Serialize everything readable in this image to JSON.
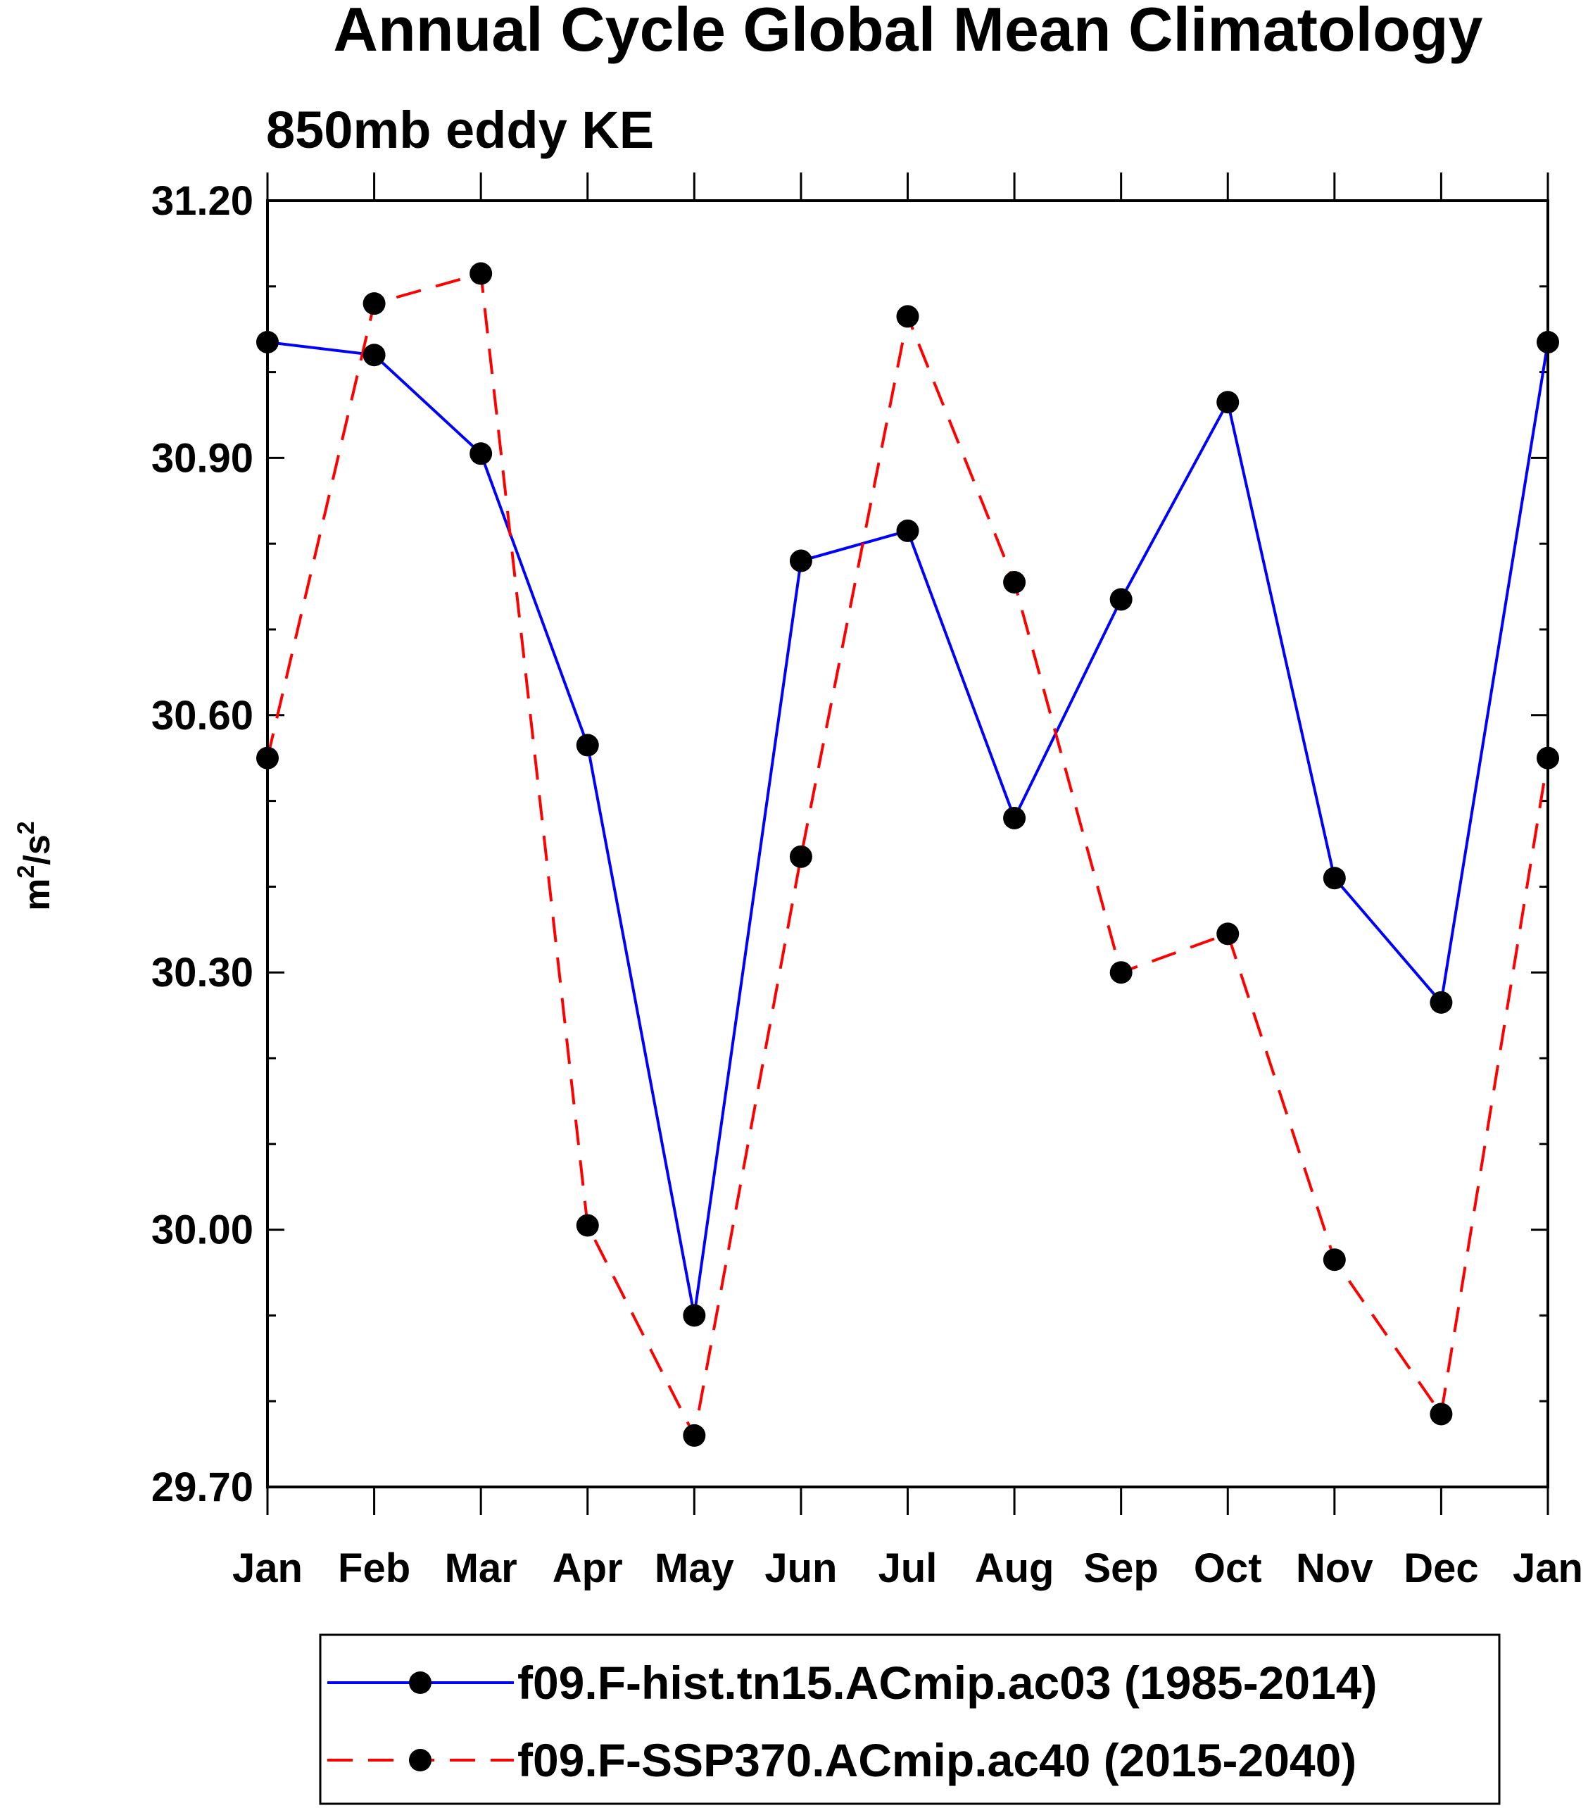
{
  "chart_data": {
    "type": "line",
    "title": "Annual Cycle Global Mean Climatology",
    "subtitle": "850mb eddy KE",
    "ylabel": {
      "base": "m",
      "sup1": "2",
      "mid": "/s",
      "sup2": "2"
    },
    "xlabel": "",
    "categories": [
      "Jan",
      "Feb",
      "Mar",
      "Apr",
      "May",
      "Jun",
      "Jul",
      "Aug",
      "Sep",
      "Oct",
      "Nov",
      "Dec",
      "Jan"
    ],
    "ylim": [
      29.7,
      31.2
    ],
    "yticks": [
      "31.20",
      "30.90",
      "30.60",
      "30.30",
      "30.00",
      "29.70"
    ],
    "ytick_values": [
      31.2,
      30.9,
      30.6,
      30.3,
      30.0,
      29.7
    ],
    "yminor_values": [
      31.1,
      31.0,
      30.8,
      30.7,
      30.5,
      30.4,
      30.2,
      30.1,
      29.9,
      29.8
    ],
    "series": [
      {
        "name": "f09.F-hist.tn15.ACmip.ac03 (1985-2014)",
        "color": "#0000ff",
        "dashed": false,
        "values": [
          31.035,
          31.02,
          30.905,
          30.565,
          29.9,
          30.78,
          30.815,
          30.48,
          30.735,
          30.965,
          30.41,
          30.265,
          31.035
        ]
      },
      {
        "name": "f09.F-SSP370.ACmip.ac40 (2015-2040)",
        "color": "#ff0000",
        "dashed": true,
        "values": [
          30.55,
          31.08,
          31.115,
          30.005,
          29.76,
          30.435,
          31.065,
          30.755,
          30.3,
          30.345,
          29.965,
          29.785,
          30.55
        ]
      }
    ],
    "legend_position": "bottom"
  }
}
